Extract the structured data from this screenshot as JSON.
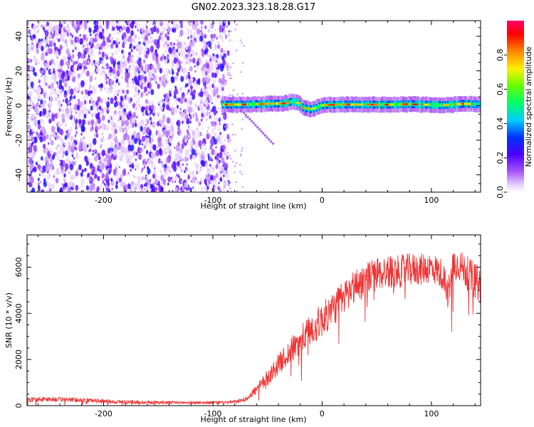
{
  "title": "GN02.2023.323.18.28.G17",
  "chart_data": [
    {
      "type": "heatmap",
      "xlabel": "Height of straight line (km)",
      "ylabel": "Frequency (Hz)",
      "xlim": [
        -270,
        145
      ],
      "ylim": [
        -50,
        49
      ],
      "x_ticks": [
        -200,
        -100,
        0,
        100
      ],
      "y_ticks": [
        -40,
        -20,
        0,
        20,
        40
      ],
      "colorbar": {
        "label": "Normalized spectral amplitude",
        "range": [
          0,
          1
        ],
        "ticks": [
          "0.0",
          "0.2",
          "0.4",
          "0.6",
          "0.8"
        ],
        "colors": [
          "#ffffff",
          "#a855f7",
          "#4b00ff",
          "#0033ff",
          "#00ccff",
          "#00ff66",
          "#66ff00",
          "#ffee00",
          "#ff8800",
          "#ff0000",
          "#ff0066"
        ]
      },
      "noise_region_x": [
        -270,
        -85
      ],
      "tone_region_x": [
        -92,
        145
      ],
      "tone_center_hz": [
        [
          -92,
          0.5
        ],
        [
          -70,
          0.6
        ],
        [
          -50,
          1.0
        ],
        [
          -35,
          1.2
        ],
        [
          -28,
          2.3
        ],
        [
          -22,
          1.5
        ],
        [
          -18,
          -1.3
        ],
        [
          -10,
          -2.2
        ],
        [
          0,
          0.2
        ],
        [
          20,
          0.6
        ],
        [
          60,
          0.5
        ],
        [
          80,
          0.8
        ],
        [
          110,
          0.2
        ],
        [
          130,
          1.0
        ],
        [
          145,
          0.6
        ]
      ],
      "tone_peak_amplitude": 0.95
    },
    {
      "type": "line",
      "xlabel": "Height of straight line (km)",
      "ylabel": "SNR (10 * v/v)",
      "xlim": [
        -270,
        145
      ],
      "ylim": [
        0,
        7400
      ],
      "x_ticks": [
        -200,
        -100,
        0,
        100
      ],
      "y_ticks": [
        0,
        2000,
        4000,
        6000
      ],
      "color": "#ee3333",
      "envelope": {
        "x": [
          -270,
          -250,
          -230,
          -210,
          -190,
          -170,
          -150,
          -130,
          -110,
          -90,
          -80,
          -70,
          -60,
          -50,
          -40,
          -30,
          -20,
          -10,
          0,
          10,
          20,
          30,
          40,
          50,
          60,
          70,
          80,
          90,
          100,
          110,
          115,
          120,
          125,
          130,
          140,
          145
        ],
        "y": [
          250,
          280,
          260,
          220,
          170,
          150,
          140,
          130,
          130,
          140,
          160,
          280,
          700,
          1200,
          1800,
          2300,
          2800,
          3300,
          3700,
          4200,
          4700,
          5200,
          5500,
          5700,
          5800,
          5800,
          5900,
          5900,
          6000,
          5700,
          4800,
          6200,
          6100,
          5900,
          5400,
          5200
        ]
      },
      "noise_amplitude": {
        "x": [
          -270,
          -210,
          -100,
          -70,
          -50,
          -20,
          0,
          40,
          80,
          120,
          145
        ],
        "y": [
          110,
          90,
          60,
          90,
          350,
          650,
          750,
          750,
          700,
          650,
          800
        ]
      }
    }
  ]
}
